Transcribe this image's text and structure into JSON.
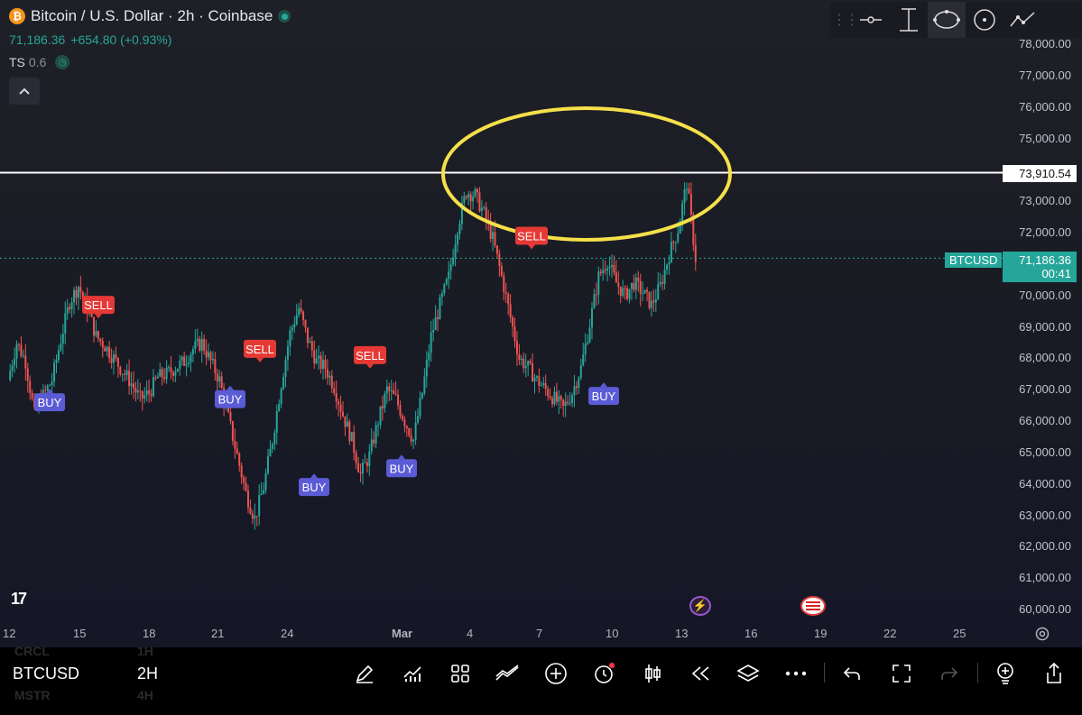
{
  "header": {
    "title": "Bitcoin / U.S. Dollar · 2h · Coinbase",
    "btc_logo": "₿",
    "last_price": "71,186.36",
    "change": "+654.80 (+0.93%)",
    "indicator_name": "TS",
    "indicator_value": "0.6"
  },
  "colors": {
    "up": "#26a69a",
    "down": "#ef5350",
    "sell_tag": "#e53935",
    "buy_tag": "#5b5bd6",
    "ellipse": "#f5e04a",
    "hline": "#ffffff"
  },
  "price_axis": {
    "labels": [
      "78,000.00",
      "77,000.00",
      "76,000.00",
      "75,000.00",
      "73,000.00",
      "72,000.00",
      "70,000.00",
      "69,000.00",
      "68,000.00",
      "67,000.00",
      "66,000.00",
      "65,000.00",
      "64,000.00",
      "63,000.00",
      "62,000.00",
      "61,000.00",
      "60,000.00"
    ],
    "horizontal_line_price": "73,910.54",
    "symbol_tag": "BTCUSD",
    "last_price": "71,186.36",
    "countdown": "00:41"
  },
  "time_axis": {
    "labels": [
      "12",
      "15",
      "18",
      "21",
      "24",
      "Mar",
      "4",
      "7",
      "10",
      "13",
      "16",
      "19",
      "22",
      "25"
    ]
  },
  "chart_data": {
    "type": "candlestick",
    "symbol": "BTCUSD",
    "timeframe": "2h",
    "ylim": [
      60000,
      78000
    ],
    "x_ticks": [
      "12",
      "15",
      "18",
      "21",
      "24",
      "Mar",
      "4",
      "7",
      "10",
      "13",
      "16",
      "19",
      "22",
      "25"
    ],
    "horizontal_line": 73910.54,
    "last_price": 71186.36,
    "series": [
      {
        "name": "BTCUSD",
        "values": [
          [
            0,
            67300
          ],
          [
            1,
            68500
          ],
          [
            2,
            67900
          ],
          [
            3,
            66200
          ],
          [
            4,
            66800
          ],
          [
            5,
            67300
          ],
          [
            6,
            68600
          ],
          [
            7,
            69800
          ],
          [
            8,
            70300
          ],
          [
            9,
            69600
          ],
          [
            10,
            68700
          ],
          [
            11,
            68400
          ],
          [
            12,
            68000
          ],
          [
            13,
            67600
          ],
          [
            14,
            67200
          ],
          [
            15,
            66700
          ],
          [
            16,
            66900
          ],
          [
            17,
            67400
          ],
          [
            18,
            67500
          ],
          [
            19,
            67700
          ],
          [
            20,
            67900
          ],
          [
            21,
            68300
          ],
          [
            22,
            68500
          ],
          [
            23,
            67900
          ],
          [
            24,
            67300
          ],
          [
            25,
            66100
          ],
          [
            26,
            64900
          ],
          [
            27,
            63700
          ],
          [
            28,
            62900
          ],
          [
            29,
            63900
          ],
          [
            30,
            65400
          ],
          [
            31,
            67200
          ],
          [
            32,
            68800
          ],
          [
            33,
            69600
          ],
          [
            34,
            68600
          ],
          [
            35,
            67900
          ],
          [
            36,
            67700
          ],
          [
            37,
            67100
          ],
          [
            38,
            66200
          ],
          [
            39,
            65400
          ],
          [
            40,
            64300
          ],
          [
            41,
            64900
          ],
          [
            42,
            66000
          ],
          [
            43,
            67000
          ],
          [
            44,
            66700
          ],
          [
            45,
            66000
          ],
          [
            46,
            65400
          ],
          [
            47,
            66900
          ],
          [
            48,
            68700
          ],
          [
            49,
            69700
          ],
          [
            50,
            70600
          ],
          [
            51,
            72200
          ],
          [
            52,
            73300
          ],
          [
            53,
            73200
          ],
          [
            54,
            72600
          ],
          [
            55,
            71800
          ],
          [
            56,
            70600
          ],
          [
            57,
            69300
          ],
          [
            58,
            68000
          ],
          [
            59,
            67700
          ],
          [
            60,
            67300
          ],
          [
            61,
            67000
          ],
          [
            62,
            66700
          ],
          [
            63,
            66400
          ],
          [
            64,
            66900
          ],
          [
            65,
            67700
          ],
          [
            66,
            69100
          ],
          [
            67,
            70600
          ],
          [
            68,
            71100
          ],
          [
            69,
            70400
          ],
          [
            70,
            70000
          ],
          [
            71,
            70400
          ],
          [
            72,
            70100
          ],
          [
            73,
            69700
          ],
          [
            74,
            70300
          ],
          [
            75,
            71300
          ],
          [
            76,
            72100
          ],
          [
            77,
            73600
          ],
          [
            78,
            71186
          ]
        ]
      }
    ],
    "signals": [
      {
        "label": "BUY",
        "price": 66600
      },
      {
        "label": "SELL",
        "price": 69700
      },
      {
        "label": "BUY",
        "price": 66700
      },
      {
        "label": "SELL",
        "price": 68300
      },
      {
        "label": "BUY",
        "price": 63900
      },
      {
        "label": "SELL",
        "price": 68100
      },
      {
        "label": "BUY",
        "price": 64500
      },
      {
        "label": "SELL",
        "price": 71900
      },
      {
        "label": "BUY",
        "price": 66800
      }
    ],
    "annotation": "yellow ellipse around the 73,910 high"
  },
  "toolbar_top": {
    "tools": [
      "horizontal-line-icon",
      "vertical-text-icon",
      "ellipse-icon",
      "circle-icon",
      "trend-icon"
    ]
  },
  "bottom_bar": {
    "symbol": "BTCUSD",
    "timeframe": "2H",
    "ghost_symbol_1": "CRCL",
    "ghost_tf_1": "1H",
    "ghost_symbol_2": "MSTR",
    "ghost_tf_2": "4H"
  }
}
